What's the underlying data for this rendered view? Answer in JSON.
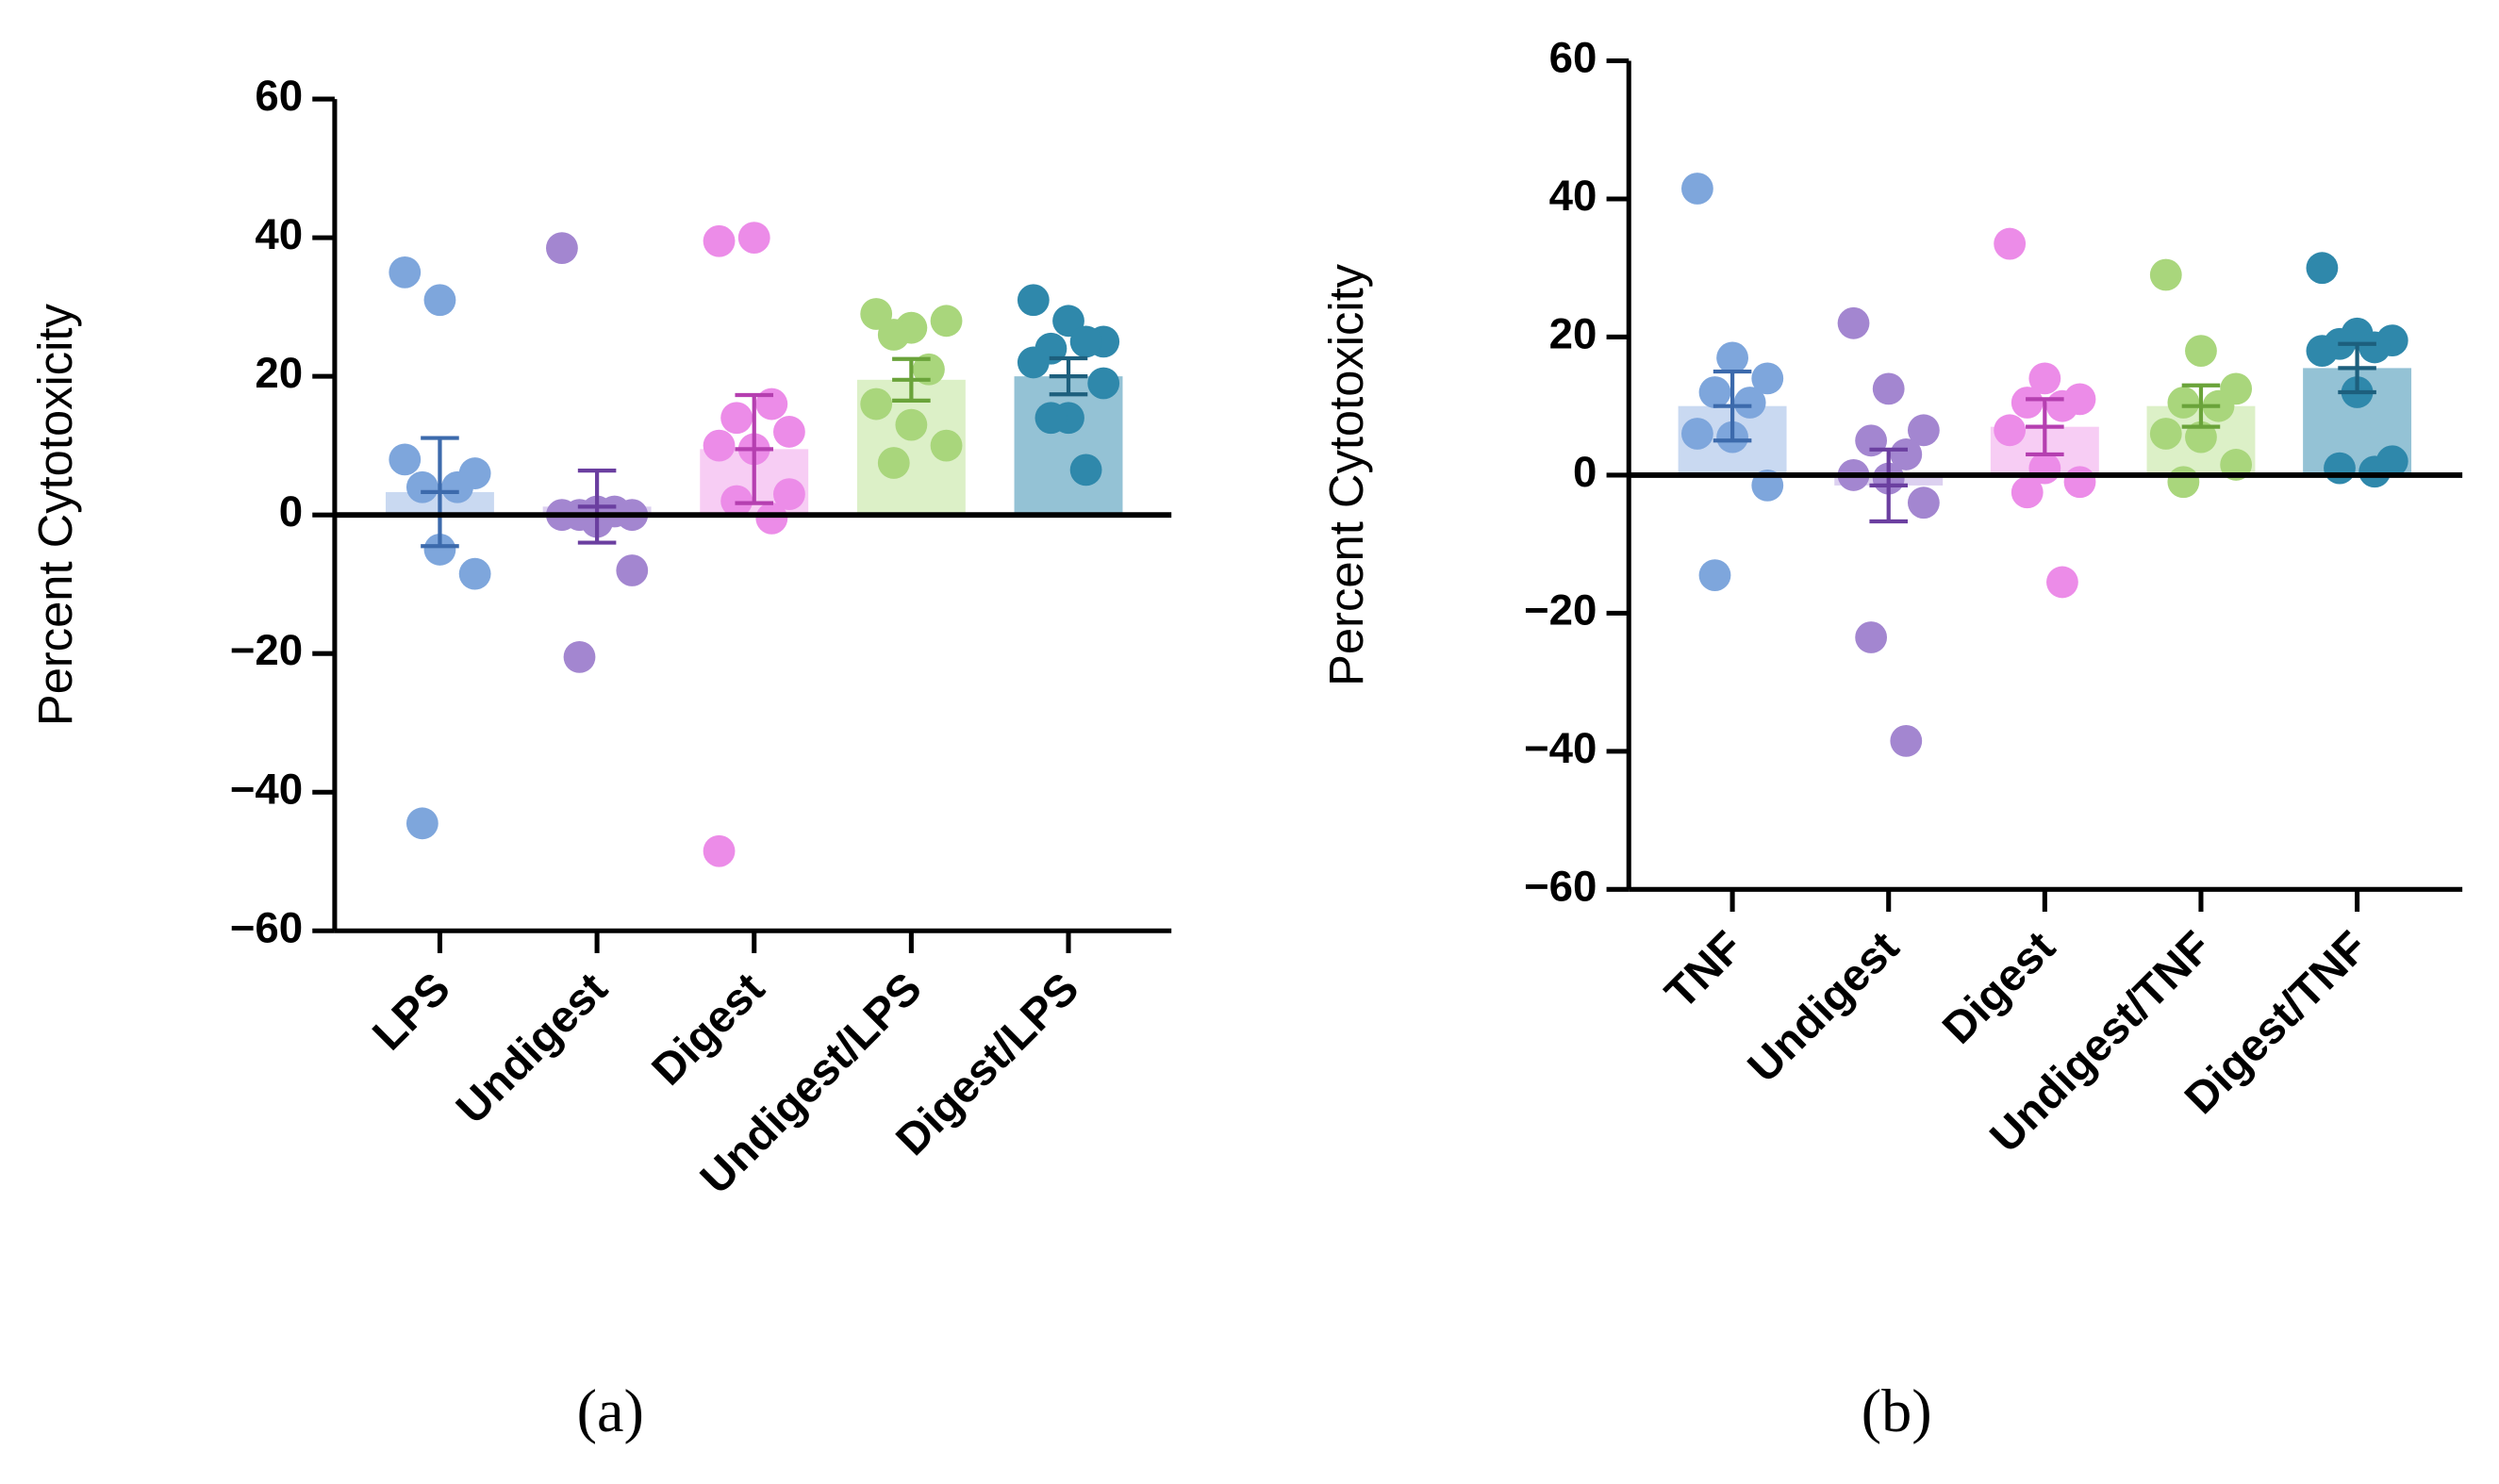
{
  "chart_data": [
    {
      "type": "bar",
      "label": "(a)",
      "ylabel": "Percent Cytotoxicity",
      "categories": [
        "LPS",
        "Undigest",
        "Digest",
        "Undigest/LPS",
        "Digest/LPS"
      ],
      "values": [
        3.3,
        1.2,
        9.5,
        19.5,
        20
      ],
      "errors": [
        7.8,
        5.2,
        7.8,
        3,
        2.6
      ],
      "points": [
        [
          35,
          31,
          6,
          4,
          4,
          8,
          -5,
          -8.5,
          -44.5
        ],
        [
          38.5,
          0.5,
          0,
          0,
          0.5,
          0,
          -1,
          -8,
          -20.5
        ],
        [
          39.5,
          40,
          12,
          14,
          16,
          10,
          9.5,
          3,
          2,
          -0.5,
          -48.5
        ],
        [
          29,
          27,
          28,
          26,
          21,
          16,
          13,
          10,
          7.5
        ],
        [
          31,
          28,
          25,
          24,
          25,
          22,
          14,
          19,
          14,
          6.5
        ]
      ],
      "colors": [
        "#7ea6dc",
        "#a386d0",
        "#ec8ce8",
        "#a9d67c",
        "#2f88ab"
      ],
      "bar_colors": [
        "#c9d9f1",
        "#dcd0f0",
        "#f7cdf4",
        "#dcf0c7",
        "#94c2d5"
      ],
      "error_colors": [
        "#3c6aac",
        "#6b3fa0",
        "#b53fb0",
        "#6aa33a",
        "#1d5f7d"
      ],
      "ylim": [
        -60,
        60
      ],
      "yticks": [
        {
          "value": -60,
          "label": "−60"
        },
        {
          "value": -40,
          "label": "−40"
        },
        {
          "value": -20,
          "label": "−20"
        },
        0,
        20,
        40,
        60
      ]
    },
    {
      "type": "bar",
      "label": "(b)",
      "ylabel": "Percent Cytotoxicity",
      "categories": [
        "TNF",
        "Undigest",
        "Digest",
        "Undigest/TNF",
        "Digest/TNF"
      ],
      "values": [
        10,
        -1.5,
        7,
        10,
        15.5
      ],
      "errors": [
        5,
        5.2,
        4,
        3,
        3.5
      ],
      "points": [
        [
          41.5,
          17,
          14,
          12,
          10.5,
          6,
          5.5,
          -1.5,
          -14.5
        ],
        [
          22,
          12.5,
          6.5,
          5,
          3,
          0,
          -0.5,
          -4,
          -23.5,
          -38.5
        ],
        [
          33.5,
          14,
          11,
          10.5,
          10,
          6.5,
          1,
          -1,
          -2.5,
          -15.5
        ],
        [
          29,
          18,
          12.5,
          10.5,
          10,
          6,
          5.5,
          1.5,
          -1
        ],
        [
          30,
          20.5,
          19.5,
          19,
          18.5,
          18,
          12,
          2,
          1,
          0.5
        ]
      ],
      "colors": [
        "#7ea6dc",
        "#a386d0",
        "#ec8ce8",
        "#a9d67c",
        "#2f88ab"
      ],
      "bar_colors": [
        "#c9d9f1",
        "#dcd0f0",
        "#f7cdf4",
        "#dcf0c7",
        "#94c2d5"
      ],
      "error_colors": [
        "#3c6aac",
        "#6b3fa0",
        "#b53fb0",
        "#6aa33a",
        "#1d5f7d"
      ],
      "ylim": [
        -60,
        60
      ],
      "yticks": [
        {
          "value": -60,
          "label": "−60"
        },
        {
          "value": -40,
          "label": "−40"
        },
        {
          "value": -20,
          "label": "−20"
        },
        0,
        20,
        40,
        60
      ]
    }
  ]
}
